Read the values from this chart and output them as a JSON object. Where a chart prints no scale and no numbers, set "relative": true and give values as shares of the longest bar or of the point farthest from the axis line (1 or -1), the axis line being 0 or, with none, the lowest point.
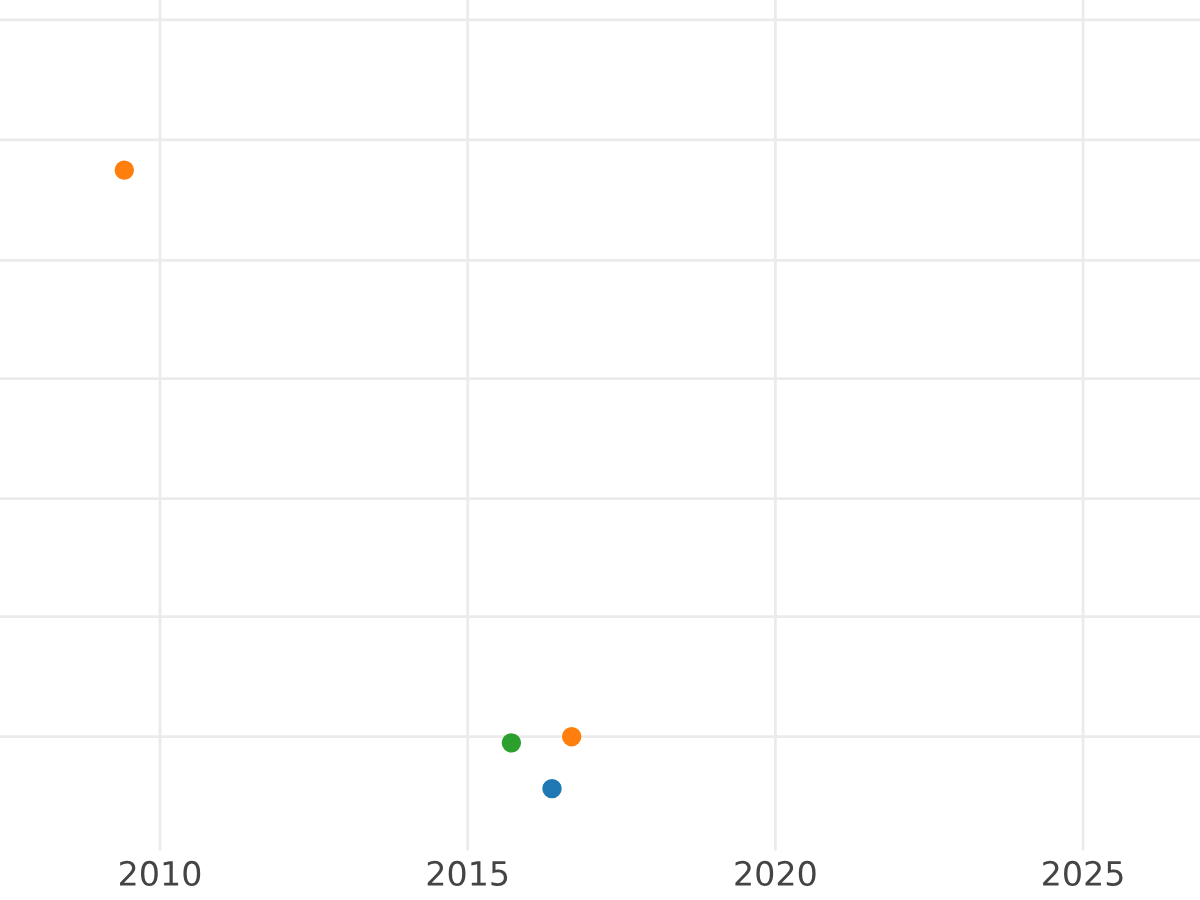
{
  "chart_data": {
    "type": "scatter",
    "relative": true,
    "grid": true,
    "marker": "circle",
    "xlim": [
      2007.4,
      2026.9
    ],
    "xticks": [
      2010,
      2015,
      2020,
      2025
    ],
    "series": [
      {
        "color": "#1f77b4",
        "x": [
          2016.37
        ],
        "values": [
          0
        ]
      },
      {
        "color": "#ff7f0e",
        "x": [
          2009.42,
          2016.69
        ],
        "values": [
          1,
          0.084
        ]
      },
      {
        "color": "#2ca02c",
        "x": [
          2015.71
        ],
        "values": [
          0.074
        ]
      }
    ]
  }
}
